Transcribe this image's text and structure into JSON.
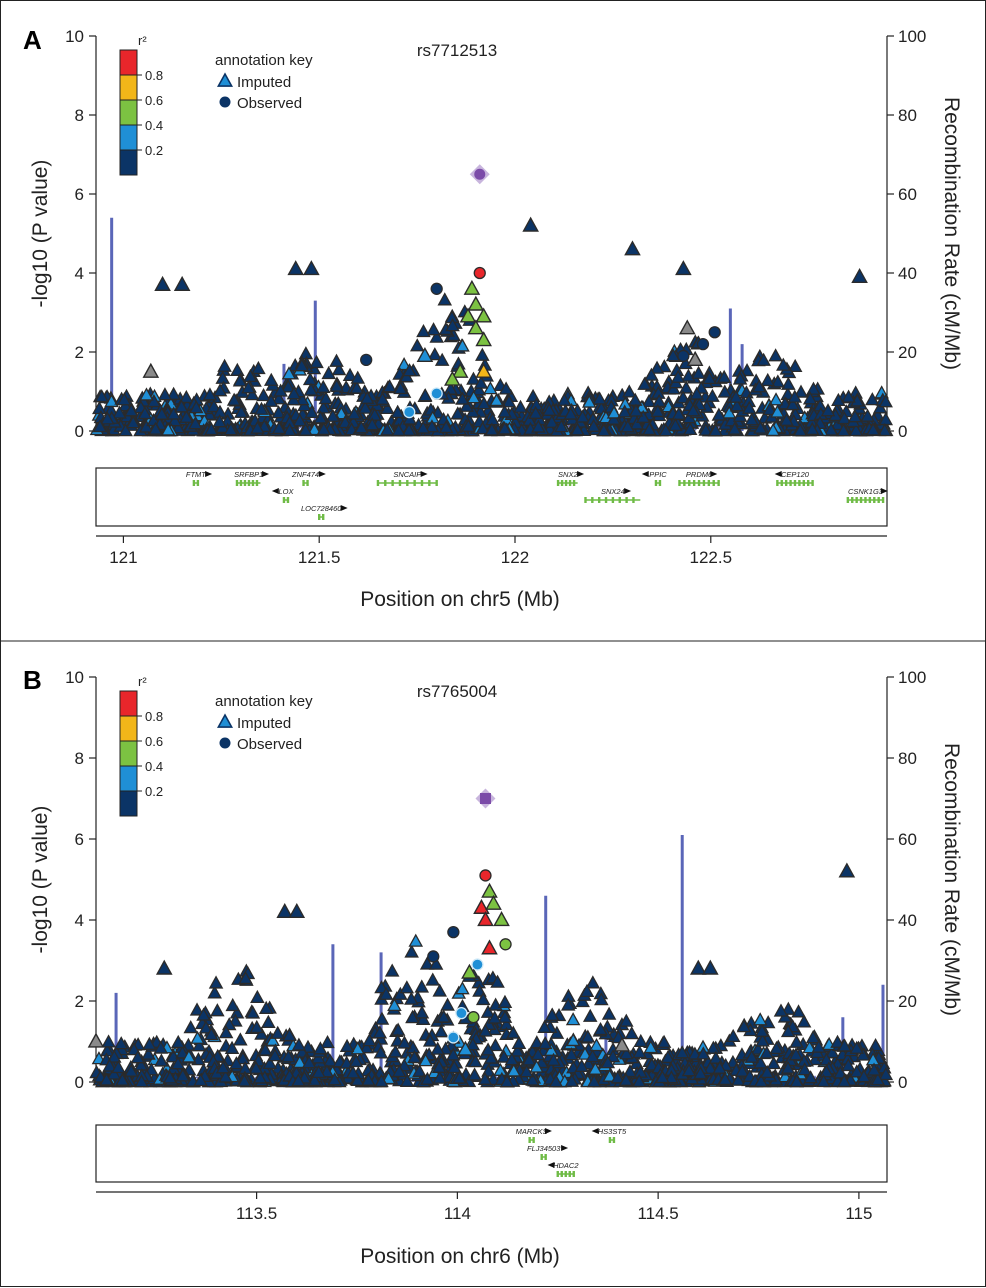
{
  "colors": {
    "r2_bins": [
      "#0b3466",
      "#1f8fd6",
      "#7cc242",
      "#f2b619",
      "#e8262b"
    ],
    "gray": "#8a8a8a",
    "index_snp": "#7b4ba8",
    "index_halo": "#c8b5dd",
    "recomb_line": "#5a66b8",
    "gene": "#6fbb46",
    "outline": "#2b2b2b"
  },
  "chart_data": [
    {
      "panel": "A",
      "type": "scatter",
      "title": "rs7712513",
      "xlabel": "Position on chr5 (Mb)",
      "ylabel_left": "-log10 (P value)",
      "ylabel_right": "Recombination Rate (cM/Mb)",
      "xlim": [
        120.93,
        122.95
      ],
      "ylim_left": [
        0,
        10
      ],
      "ylim_right": [
        0,
        100
      ],
      "x_ticks": [
        121,
        121.5,
        122,
        122.5
      ],
      "x_tick_labels": [
        "121",
        "121.5",
        "122",
        "122.5"
      ],
      "y_ticks_left": [
        0,
        2,
        4,
        6,
        8,
        10
      ],
      "y_ticks_right": [
        0,
        20,
        40,
        60,
        80,
        100
      ],
      "colorbar": {
        "title": "r²",
        "labels": [
          "0.8",
          "0.6",
          "0.4",
          "0.2"
        ]
      },
      "legend": {
        "title": "annotation key",
        "items": [
          "Imputed",
          "Observed"
        ]
      },
      "index_snp": {
        "name": "rs7712513",
        "x": 121.91,
        "y": 6.5,
        "shape": "diamond-circle"
      },
      "highlight_points": [
        {
          "x": 121.91,
          "y": 4.0,
          "bin": 4,
          "shape": "circle"
        },
        {
          "x": 121.89,
          "y": 3.6,
          "bin": 2,
          "shape": "triangle"
        },
        {
          "x": 121.9,
          "y": 3.2,
          "bin": 2,
          "shape": "triangle"
        },
        {
          "x": 121.88,
          "y": 2.9,
          "bin": 2,
          "shape": "triangle"
        },
        {
          "x": 121.92,
          "y": 2.9,
          "bin": 2,
          "shape": "triangle"
        },
        {
          "x": 121.9,
          "y": 2.6,
          "bin": 2,
          "shape": "triangle"
        },
        {
          "x": 121.92,
          "y": 2.3,
          "bin": 2,
          "shape": "triangle"
        },
        {
          "x": 121.86,
          "y": 1.5,
          "bin": 2,
          "shape": "triangle"
        },
        {
          "x": 121.84,
          "y": 1.3,
          "bin": 2,
          "shape": "triangle"
        },
        {
          "x": 121.92,
          "y": 1.5,
          "bin": 3,
          "shape": "triangle"
        },
        {
          "x": 121.8,
          "y": 0.95,
          "bin": 1,
          "shape": "circle"
        },
        {
          "x": 121.73,
          "y": 0.48,
          "bin": 1,
          "shape": "circle"
        },
        {
          "x": 121.77,
          "y": 1.9,
          "bin": 1,
          "shape": "triangle"
        },
        {
          "x": 121.8,
          "y": 3.6,
          "bin": 0,
          "shape": "circle"
        },
        {
          "x": 121.62,
          "y": 1.8,
          "bin": 0,
          "shape": "circle"
        },
        {
          "x": 122.51,
          "y": 2.5,
          "bin": 0,
          "shape": "circle"
        },
        {
          "x": 122.48,
          "y": 2.2,
          "bin": 0,
          "shape": "circle"
        },
        {
          "x": 122.43,
          "y": 1.9,
          "bin": 0,
          "shape": "circle"
        },
        {
          "x": 121.1,
          "y": 3.7,
          "bin": 0,
          "shape": "triangle"
        },
        {
          "x": 121.15,
          "y": 3.7,
          "bin": 0,
          "shape": "triangle"
        },
        {
          "x": 121.44,
          "y": 4.1,
          "bin": 0,
          "shape": "triangle"
        },
        {
          "x": 121.48,
          "y": 4.1,
          "bin": 0,
          "shape": "triangle"
        },
        {
          "x": 122.04,
          "y": 5.2,
          "bin": 0,
          "shape": "triangle"
        },
        {
          "x": 122.3,
          "y": 4.6,
          "bin": 0,
          "shape": "triangle"
        },
        {
          "x": 122.43,
          "y": 4.1,
          "bin": 0,
          "shape": "triangle"
        },
        {
          "x": 122.88,
          "y": 3.9,
          "bin": 0,
          "shape": "triangle"
        },
        {
          "x": 121.07,
          "y": 1.5,
          "bin": "gray",
          "shape": "triangle"
        },
        {
          "x": 122.44,
          "y": 2.6,
          "bin": "gray",
          "shape": "triangle"
        },
        {
          "x": 122.46,
          "y": 1.8,
          "bin": "gray",
          "shape": "triangle"
        }
      ],
      "recombination_peaks": [
        {
          "x": 120.97,
          "rate": 54
        },
        {
          "x": 121.41,
          "rate": 17
        },
        {
          "x": 121.49,
          "rate": 33
        },
        {
          "x": 122.55,
          "rate": 31
        },
        {
          "x": 122.58,
          "rate": 22
        }
      ],
      "genes": [
        {
          "name": "FTMT",
          "start": 121.18,
          "end": 121.19,
          "row": 0,
          "strand": "+"
        },
        {
          "name": "SRFBP1",
          "start": 121.29,
          "end": 121.35,
          "row": 0,
          "strand": "+"
        },
        {
          "name": "ZNF474",
          "start": 121.46,
          "end": 121.47,
          "row": 0,
          "strand": "+"
        },
        {
          "name": "SNCAIP",
          "start": 121.65,
          "end": 121.8,
          "row": 0,
          "strand": "+"
        },
        {
          "name": "SNX2",
          "start": 122.11,
          "end": 122.16,
          "row": 0,
          "strand": "+"
        },
        {
          "name": "PPIC",
          "start": 122.36,
          "end": 122.37,
          "row": 0,
          "strand": "-"
        },
        {
          "name": "PRDM6",
          "start": 122.42,
          "end": 122.52,
          "row": 0,
          "strand": "+"
        },
        {
          "name": "CEP120",
          "start": 122.67,
          "end": 122.76,
          "row": 0,
          "strand": "-"
        },
        {
          "name": "LOX",
          "start": 121.41,
          "end": 121.42,
          "row": 1,
          "strand": "-"
        },
        {
          "name": "SNX24",
          "start": 122.18,
          "end": 122.32,
          "row": 1,
          "strand": "+"
        },
        {
          "name": "CSNK1G3",
          "start": 122.85,
          "end": 122.94,
          "row": 1,
          "strand": "+"
        },
        {
          "name": "LOC728460",
          "start": 121.5,
          "end": 121.51,
          "row": 2,
          "strand": "+"
        }
      ]
    },
    {
      "panel": "B",
      "type": "scatter",
      "title": "rs7765004",
      "xlabel": "Position on chr6 (Mb)",
      "ylabel_left": "-log10 (P value)",
      "ylabel_right": "Recombination Rate (cM/Mb)",
      "xlim": [
        113.1,
        115.07
      ],
      "ylim_left": [
        0,
        10
      ],
      "ylim_right": [
        0,
        100
      ],
      "x_ticks": [
        113.5,
        114,
        114.5,
        115
      ],
      "x_tick_labels": [
        "113.5",
        "114",
        "114.5",
        "115"
      ],
      "y_ticks_left": [
        0,
        2,
        4,
        6,
        8,
        10
      ],
      "y_ticks_right": [
        0,
        20,
        40,
        60,
        80,
        100
      ],
      "colorbar": {
        "title": "r²",
        "labels": [
          "0.8",
          "0.6",
          "0.4",
          "0.2"
        ]
      },
      "legend": {
        "title": "annotation key",
        "items": [
          "Imputed",
          "Observed"
        ]
      },
      "index_snp": {
        "name": "rs7765004",
        "x": 114.07,
        "y": 7.0,
        "shape": "diamond-square"
      },
      "highlight_points": [
        {
          "x": 114.07,
          "y": 5.1,
          "bin": 4,
          "shape": "circle"
        },
        {
          "x": 114.08,
          "y": 4.7,
          "bin": 2,
          "shape": "triangle"
        },
        {
          "x": 114.06,
          "y": 4.3,
          "bin": 4,
          "shape": "triangle"
        },
        {
          "x": 114.07,
          "y": 4.0,
          "bin": 4,
          "shape": "triangle"
        },
        {
          "x": 114.09,
          "y": 4.4,
          "bin": 2,
          "shape": "triangle"
        },
        {
          "x": 114.11,
          "y": 4.0,
          "bin": 2,
          "shape": "triangle"
        },
        {
          "x": 114.08,
          "y": 3.3,
          "bin": 4,
          "shape": "triangle"
        },
        {
          "x": 114.12,
          "y": 3.4,
          "bin": 2,
          "shape": "circle"
        },
        {
          "x": 114.03,
          "y": 2.7,
          "bin": 2,
          "shape": "triangle"
        },
        {
          "x": 114.04,
          "y": 1.6,
          "bin": 2,
          "shape": "circle"
        },
        {
          "x": 114.05,
          "y": 2.9,
          "bin": 1,
          "shape": "circle"
        },
        {
          "x": 114.01,
          "y": 1.7,
          "bin": 1,
          "shape": "circle"
        },
        {
          "x": 113.99,
          "y": 1.1,
          "bin": 1,
          "shape": "circle"
        },
        {
          "x": 114.02,
          "y": 0.8,
          "bin": 1,
          "shape": "triangle"
        },
        {
          "x": 113.99,
          "y": 3.7,
          "bin": 0,
          "shape": "circle"
        },
        {
          "x": 113.94,
          "y": 3.1,
          "bin": 0,
          "shape": "circle"
        },
        {
          "x": 113.57,
          "y": 4.2,
          "bin": 0,
          "shape": "triangle"
        },
        {
          "x": 113.6,
          "y": 4.2,
          "bin": 0,
          "shape": "triangle"
        },
        {
          "x": 114.97,
          "y": 5.2,
          "bin": 0,
          "shape": "triangle"
        },
        {
          "x": 114.6,
          "y": 2.8,
          "bin": 0,
          "shape": "triangle"
        },
        {
          "x": 114.63,
          "y": 2.8,
          "bin": 0,
          "shape": "triangle"
        },
        {
          "x": 113.27,
          "y": 2.8,
          "bin": 0,
          "shape": "triangle"
        },
        {
          "x": 113.1,
          "y": 1.0,
          "bin": "gray",
          "shape": "triangle"
        },
        {
          "x": 114.41,
          "y": 0.9,
          "bin": "gray",
          "shape": "triangle"
        }
      ],
      "recombination_peaks": [
        {
          "x": 113.15,
          "rate": 22
        },
        {
          "x": 113.69,
          "rate": 34
        },
        {
          "x": 113.81,
          "rate": 32
        },
        {
          "x": 114.22,
          "rate": 46
        },
        {
          "x": 114.37,
          "rate": 13
        },
        {
          "x": 114.56,
          "rate": 61
        },
        {
          "x": 114.96,
          "rate": 16
        },
        {
          "x": 115.06,
          "rate": 24
        }
      ],
      "genes": [
        {
          "name": "MARCKS",
          "start": 114.18,
          "end": 114.19,
          "row": 0,
          "strand": "+"
        },
        {
          "name": "HS3ST5",
          "start": 114.38,
          "end": 114.39,
          "row": 0,
          "strand": "-"
        },
        {
          "name": "FLJ34503",
          "start": 114.21,
          "end": 114.22,
          "row": 1,
          "strand": "+"
        },
        {
          "name": "HDAC2",
          "start": 114.25,
          "end": 114.29,
          "row": 2,
          "strand": "-"
        }
      ]
    }
  ]
}
